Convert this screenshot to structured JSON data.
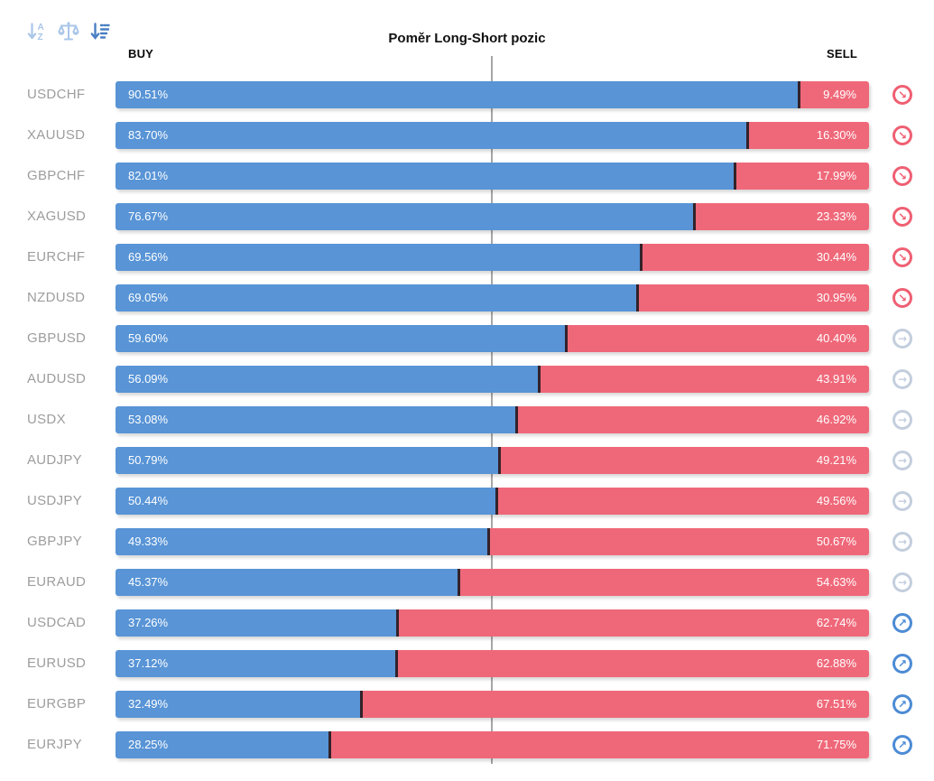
{
  "title": "Poměr Long-Short pozic",
  "headers": {
    "buy": "BUY",
    "sell": "SELL"
  },
  "toolbar": {
    "sort_alpha_icon": "sort-alphabetical-descending",
    "balance_icon": "balance-scale",
    "sort_amount_icon": "sort-amount-descending"
  },
  "colors": {
    "buy_bar": "#5894d6",
    "sell_bar": "#ef6879",
    "segment_divider": "#33222a",
    "pair_label": "#9d9d9d",
    "center_line": "#a6a6a6",
    "bearish_icon": "#ef5f72",
    "neutral_icon": "#c3cedd",
    "bullish_icon": "#4c8bd5"
  },
  "icons": {
    "bearish": {
      "glyph": "↘",
      "color": "#ef5f72",
      "name": "trend-down-icon"
    },
    "neutral": {
      "glyph": "→",
      "color": "#c3cedd",
      "name": "trend-flat-icon"
    },
    "bullish": {
      "glyph": "↗",
      "color": "#4c8bd5",
      "name": "trend-up-icon"
    }
  },
  "chart_data": {
    "type": "bar",
    "orientation": "horizontal-stacked",
    "title": "Poměr Long-Short pozic",
    "series_names": [
      "BUY",
      "SELL"
    ],
    "unit": "%",
    "xlim": [
      0,
      100
    ],
    "center_reference_line": 50,
    "categories": [
      "USDCHF",
      "XAUUSD",
      "GBPCHF",
      "XAGUSD",
      "EURCHF",
      "NZDUSD",
      "GBPUSD",
      "AUDUSD",
      "USDX",
      "AUDJPY",
      "USDJPY",
      "GBPJPY",
      "EURAUD",
      "USDCAD",
      "EURUSD",
      "EURGBP",
      "EURJPY"
    ],
    "rows": [
      {
        "pair": "USDCHF",
        "buy": 90.51,
        "sell": 9.49,
        "signal": "bearish"
      },
      {
        "pair": "XAUUSD",
        "buy": 83.7,
        "sell": 16.3,
        "signal": "bearish"
      },
      {
        "pair": "GBPCHF",
        "buy": 82.01,
        "sell": 17.99,
        "signal": "bearish"
      },
      {
        "pair": "XAGUSD",
        "buy": 76.67,
        "sell": 23.33,
        "signal": "bearish"
      },
      {
        "pair": "EURCHF",
        "buy": 69.56,
        "sell": 30.44,
        "signal": "bearish"
      },
      {
        "pair": "NZDUSD",
        "buy": 69.05,
        "sell": 30.95,
        "signal": "bearish"
      },
      {
        "pair": "GBPUSD",
        "buy": 59.6,
        "sell": 40.4,
        "signal": "neutral"
      },
      {
        "pair": "AUDUSD",
        "buy": 56.09,
        "sell": 43.91,
        "signal": "neutral"
      },
      {
        "pair": "USDX",
        "buy": 53.08,
        "sell": 46.92,
        "signal": "neutral"
      },
      {
        "pair": "AUDJPY",
        "buy": 50.79,
        "sell": 49.21,
        "signal": "neutral"
      },
      {
        "pair": "USDJPY",
        "buy": 50.44,
        "sell": 49.56,
        "signal": "neutral"
      },
      {
        "pair": "GBPJPY",
        "buy": 49.33,
        "sell": 50.67,
        "signal": "neutral"
      },
      {
        "pair": "EURAUD",
        "buy": 45.37,
        "sell": 54.63,
        "signal": "neutral"
      },
      {
        "pair": "USDCAD",
        "buy": 37.26,
        "sell": 62.74,
        "signal": "bullish"
      },
      {
        "pair": "EURUSD",
        "buy": 37.12,
        "sell": 62.88,
        "signal": "bullish"
      },
      {
        "pair": "EURGBP",
        "buy": 32.49,
        "sell": 67.51,
        "signal": "bullish"
      },
      {
        "pair": "EURJPY",
        "buy": 28.25,
        "sell": 71.75,
        "signal": "bullish"
      }
    ]
  }
}
